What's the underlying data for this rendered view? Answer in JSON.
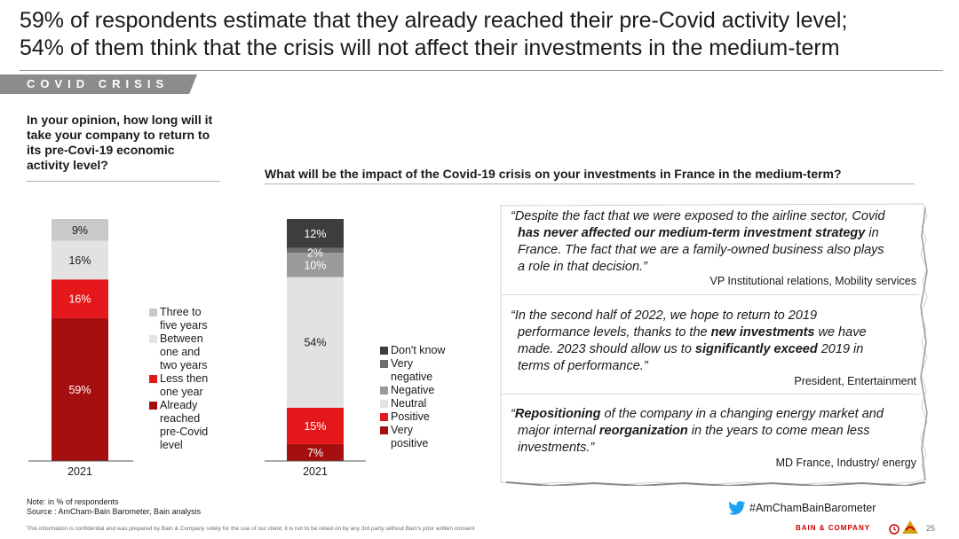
{
  "title": {
    "line1": "59% of respondents estimate that they already reached their pre-Covid activity level;",
    "line2": "54% of them think that the crisis will not affect their investments in the medium-term"
  },
  "section_label": "COVID CRISIS",
  "question_left": "In your opinion, how long will it take your company to return to its pre-Covi-19 economic activity level?",
  "question_right": "What will be the impact of the Covid-19 crisis on your investments in France in the medium-term?",
  "chart_data": [
    {
      "type": "bar",
      "stacked": true,
      "categories": [
        "2021"
      ],
      "ylim": [
        0,
        100
      ],
      "legend_position": "right",
      "series": [
        {
          "name": "Already reached pre-Covid level",
          "values": [
            59
          ],
          "color": "#a50f0f",
          "label": "59%"
        },
        {
          "name": "Less then one year",
          "values": [
            16
          ],
          "color": "#e4171b",
          "label": "16%"
        },
        {
          "name": "Between one and two years",
          "values": [
            16
          ],
          "color": "#e2e2e2",
          "label": "16%"
        },
        {
          "name": "Three to five years",
          "values": [
            9
          ],
          "color": "#c9c9c9",
          "label": "9%"
        }
      ]
    },
    {
      "type": "bar",
      "stacked": true,
      "categories": [
        "2021"
      ],
      "ylim": [
        0,
        100
      ],
      "legend_position": "right",
      "series": [
        {
          "name": "Very positive",
          "values": [
            7
          ],
          "color": "#a50f0f",
          "label": "7%"
        },
        {
          "name": "Positive",
          "values": [
            15
          ],
          "color": "#e4171b",
          "label": "15%"
        },
        {
          "name": "Neutral",
          "values": [
            54
          ],
          "color": "#e2e2e2",
          "label": "54%"
        },
        {
          "name": "Negative",
          "values": [
            10
          ],
          "color": "#9b9b9b",
          "label": "10%"
        },
        {
          "name": "Very negative",
          "values": [
            2
          ],
          "color": "#6e6e6e",
          "label": "2%"
        },
        {
          "name": "Don't know",
          "values": [
            12
          ],
          "color": "#3d3d3d",
          "label": "12%"
        }
      ]
    }
  ],
  "legend_left": [
    {
      "label": "Three to\nfive years",
      "color": "#c9c9c9"
    },
    {
      "label": "Between\none and\ntwo years",
      "color": "#e2e2e2"
    },
    {
      "label": "Less then\none year",
      "color": "#e4171b"
    },
    {
      "label": "Already\nreached\npre-Covid\nlevel",
      "color": "#a50f0f"
    }
  ],
  "legend_right": [
    {
      "label": "Don't know",
      "color": "#3d3d3d"
    },
    {
      "label": "Very\nnegative",
      "color": "#6e6e6e"
    },
    {
      "label": "Negative",
      "color": "#9b9b9b"
    },
    {
      "label": "Neutral",
      "color": "#e2e2e2"
    },
    {
      "label": "Positive",
      "color": "#e4171b"
    },
    {
      "label": "Very\npositive",
      "color": "#a50f0f"
    }
  ],
  "quotes": [
    {
      "lines": [
        [
          {
            "t": "“Despite the fact that we were exposed to the airline sector, Covid",
            "b": false
          }
        ],
        [
          {
            "t": "has never affected our medium-term investment strategy",
            "b": true
          },
          {
            "t": " in",
            "b": false
          }
        ],
        [
          {
            "t": "France. The fact that we are a family-owned business also plays",
            "b": false
          }
        ],
        [
          {
            "t": "a role in that decision.”",
            "b": false
          }
        ]
      ],
      "attribution": "VP Institutional relations, Mobility services"
    },
    {
      "lines": [
        [
          {
            "t": "“In the second half of 2022, we hope to return to 2019",
            "b": false
          }
        ],
        [
          {
            "t": "performance levels, thanks to the ",
            "b": false
          },
          {
            "t": "new investments",
            "b": true
          },
          {
            "t": " we have",
            "b": false
          }
        ],
        [
          {
            "t": "made. 2023 should allow us to ",
            "b": false
          },
          {
            "t": "significantly exceed",
            "b": true
          },
          {
            "t": " 2019 in",
            "b": false
          }
        ],
        [
          {
            "t": "terms of performance.”",
            "b": false
          }
        ]
      ],
      "attribution": "President, Entertainment"
    },
    {
      "lines": [
        [
          {
            "t": "“",
            "b": false
          },
          {
            "t": "Repositioning",
            "b": true
          },
          {
            "t": " of the company in a changing energy market and",
            "b": false
          }
        ],
        [
          {
            "t": "major internal ",
            "b": false
          },
          {
            "t": "reorganization",
            "b": true
          },
          {
            "t": " in the years to come mean less",
            "b": false
          }
        ],
        [
          {
            "t": "investments.”",
            "b": false
          }
        ]
      ],
      "attribution": "MD France, Industry/ energy"
    }
  ],
  "note_line1": "Note: in % of respondents",
  "note_line2": "Source : AmCham-Bain Barometer, Bain analysis",
  "hashtag": "#AmChamBainBarometer",
  "hashtag_icon": "twitter-bird-icon",
  "footer_text": "This information is confidential and was prepared by Bain & Company solely for the use of our client; it is not to be relied on by any 3rd party without Bain's prior written consent",
  "brand": "BAIN & COMPANY",
  "page_number": "25",
  "accent_color": "#cc0000",
  "twitter_color": "#1da1f2"
}
